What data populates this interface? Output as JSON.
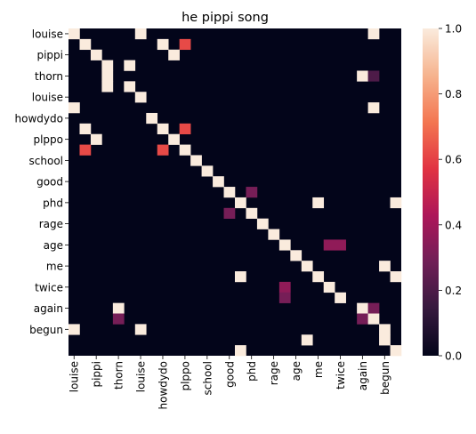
{
  "chart_data": {
    "type": "heatmap",
    "title": "he pippi song",
    "xlabel": "",
    "ylabel": "",
    "tokens": [
      "louise",
      "",
      "pippi",
      "",
      "thorn",
      "",
      "louise",
      "",
      "howdydo",
      "",
      "plppo",
      "",
      "school",
      "",
      "good",
      "",
      "phd",
      "",
      "rage",
      "",
      "age",
      "",
      "me",
      "",
      "twice",
      "",
      "again",
      "",
      "begun",
      ""
    ],
    "tick_labels": [
      "louise",
      "pippi",
      "thorn",
      "louise",
      "howdydo",
      "plppo",
      "school",
      "good",
      "phd",
      "rage",
      "age",
      "me",
      "twice",
      "again",
      "begun"
    ],
    "cells": [
      [
        0,
        0,
        1
      ],
      [
        0,
        6,
        1
      ],
      [
        0,
        27,
        1
      ],
      [
        1,
        1,
        1
      ],
      [
        1,
        8,
        1
      ],
      [
        1,
        10,
        0.62
      ],
      [
        2,
        2,
        1
      ],
      [
        2,
        9,
        1
      ],
      [
        3,
        3,
        1
      ],
      [
        3,
        5,
        1
      ],
      [
        4,
        3,
        1
      ],
      [
        4,
        26,
        1
      ],
      [
        4,
        27,
        0.2
      ],
      [
        5,
        3,
        1
      ],
      [
        5,
        5,
        1
      ],
      [
        6,
        6,
        1
      ],
      [
        7,
        0,
        1
      ],
      [
        7,
        27,
        1
      ],
      [
        8,
        7,
        1
      ],
      [
        9,
        1,
        1
      ],
      [
        9,
        8,
        1
      ],
      [
        9,
        10,
        0.62
      ],
      [
        10,
        2,
        1
      ],
      [
        10,
        9,
        1
      ],
      [
        11,
        1,
        0.62
      ],
      [
        11,
        8,
        0.62
      ],
      [
        11,
        10,
        1
      ],
      [
        12,
        11,
        1
      ],
      [
        13,
        12,
        1
      ],
      [
        14,
        13,
        1
      ],
      [
        15,
        14,
        1
      ],
      [
        15,
        16,
        0.3
      ],
      [
        16,
        15,
        1
      ],
      [
        16,
        22,
        1
      ],
      [
        16,
        29,
        1
      ],
      [
        17,
        14,
        0.3
      ],
      [
        17,
        16,
        1
      ],
      [
        18,
        17,
        1
      ],
      [
        19,
        18,
        1
      ],
      [
        20,
        19,
        1
      ],
      [
        20,
        23,
        0.36
      ],
      [
        20,
        24,
        0.36
      ],
      [
        21,
        20,
        1
      ],
      [
        22,
        21,
        1
      ],
      [
        22,
        28,
        1
      ],
      [
        23,
        15,
        1
      ],
      [
        23,
        22,
        1
      ],
      [
        23,
        29,
        1
      ],
      [
        24,
        19,
        0.36
      ],
      [
        24,
        23,
        1
      ],
      [
        25,
        19,
        0.3
      ],
      [
        25,
        24,
        1
      ],
      [
        26,
        4,
        1
      ],
      [
        26,
        26,
        1
      ],
      [
        26,
        27,
        0.3
      ],
      [
        27,
        4,
        0.3
      ],
      [
        27,
        26,
        0.3
      ],
      [
        27,
        27,
        1
      ],
      [
        28,
        0,
        1
      ],
      [
        28,
        6,
        1
      ],
      [
        28,
        28,
        1
      ],
      [
        29,
        21,
        1
      ],
      [
        29,
        28,
        1
      ],
      [
        30,
        15,
        1
      ],
      [
        30,
        29,
        1
      ]
    ],
    "rows": 31,
    "cols": 30,
    "colorbar": {
      "min": 0,
      "max": 1,
      "ticks": [
        "0.0",
        "0.2",
        "0.4",
        "0.6",
        "0.8",
        "1.0"
      ]
    },
    "colormap": [
      "#03051a",
      "#36193e",
      "#701f57",
      "#ad1759",
      "#e13342",
      "#f37651",
      "#f6b48f",
      "#faebdd"
    ],
    "grid": false,
    "legend": "colorbar-right"
  }
}
